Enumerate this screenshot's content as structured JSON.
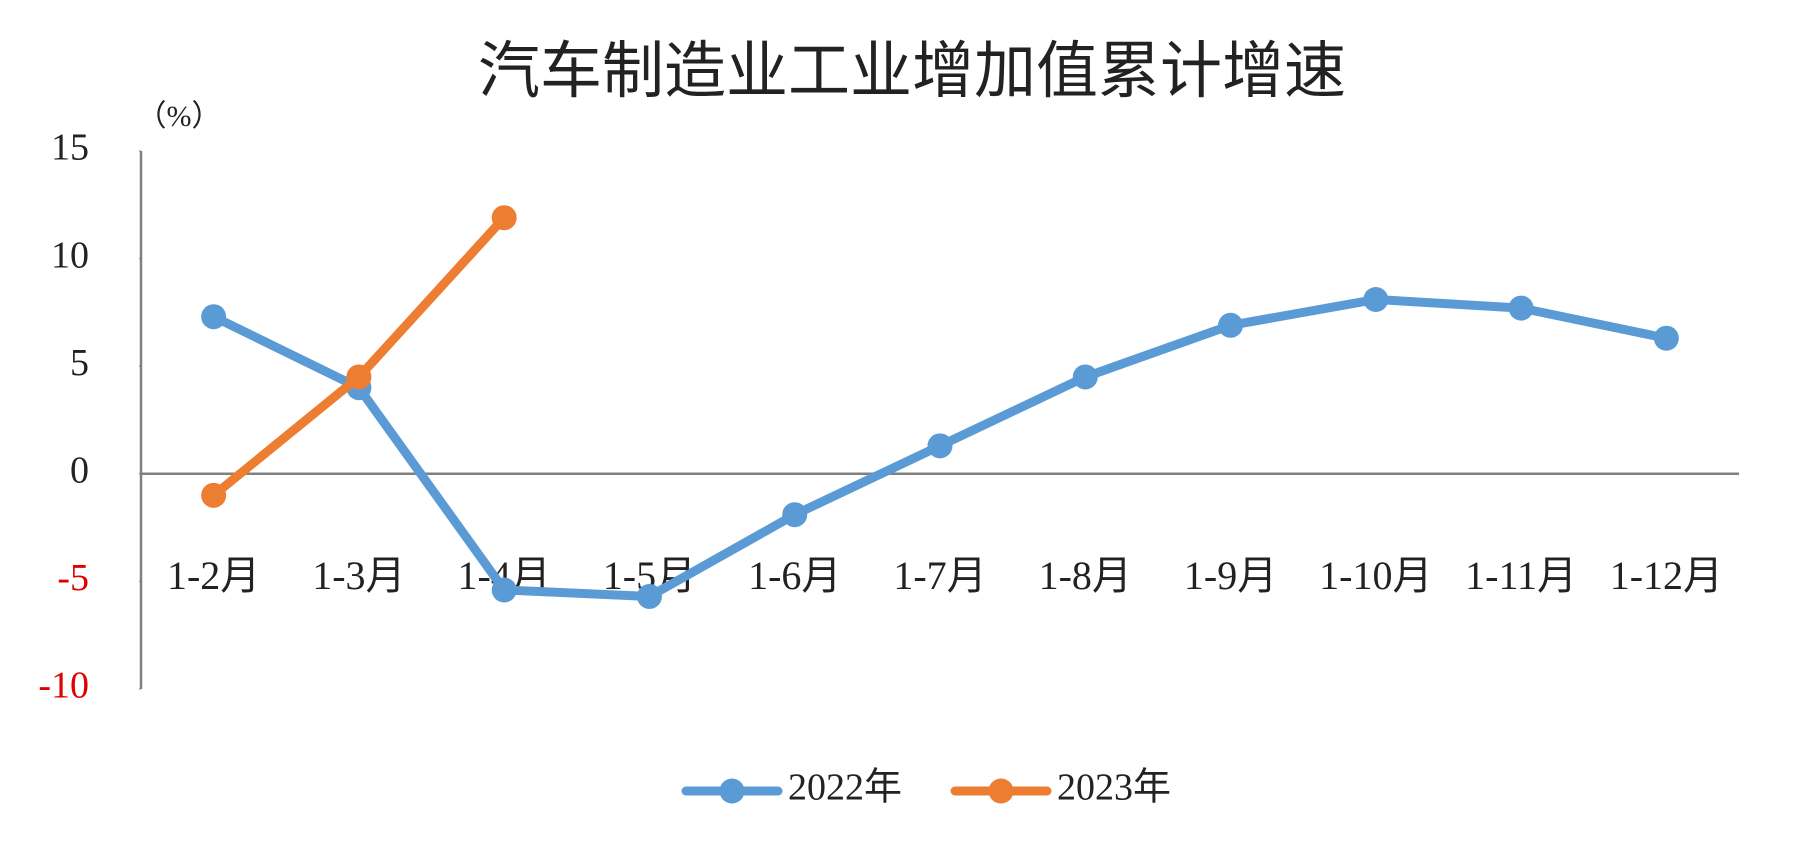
{
  "chart_data": {
    "type": "line",
    "title": "汽车制造业工业增加值累计增速",
    "y_unit_label": "（%）",
    "categories": [
      "1-2月",
      "1-3月",
      "1-4月",
      "1-5月",
      "1-6月",
      "1-7月",
      "1-8月",
      "1-9月",
      "1-10月",
      "1-11月",
      "1-12月"
    ],
    "series": [
      {
        "name": "2022年",
        "color": "#5b9bd5",
        "values": [
          7.3,
          4.0,
          -5.4,
          -5.7,
          -1.9,
          1.3,
          4.5,
          6.9,
          8.1,
          7.7,
          6.3
        ]
      },
      {
        "name": "2023年",
        "color": "#ed7d31",
        "values": [
          -1.0,
          4.5,
          11.9,
          null,
          null,
          null,
          null,
          null,
          null,
          null,
          null
        ]
      }
    ],
    "ylim": [
      -10,
      15
    ],
    "yticks": [
      -10,
      -5,
      0,
      5,
      10,
      15
    ],
    "negative_tick_color": "#e00000",
    "legend": "bottom"
  }
}
